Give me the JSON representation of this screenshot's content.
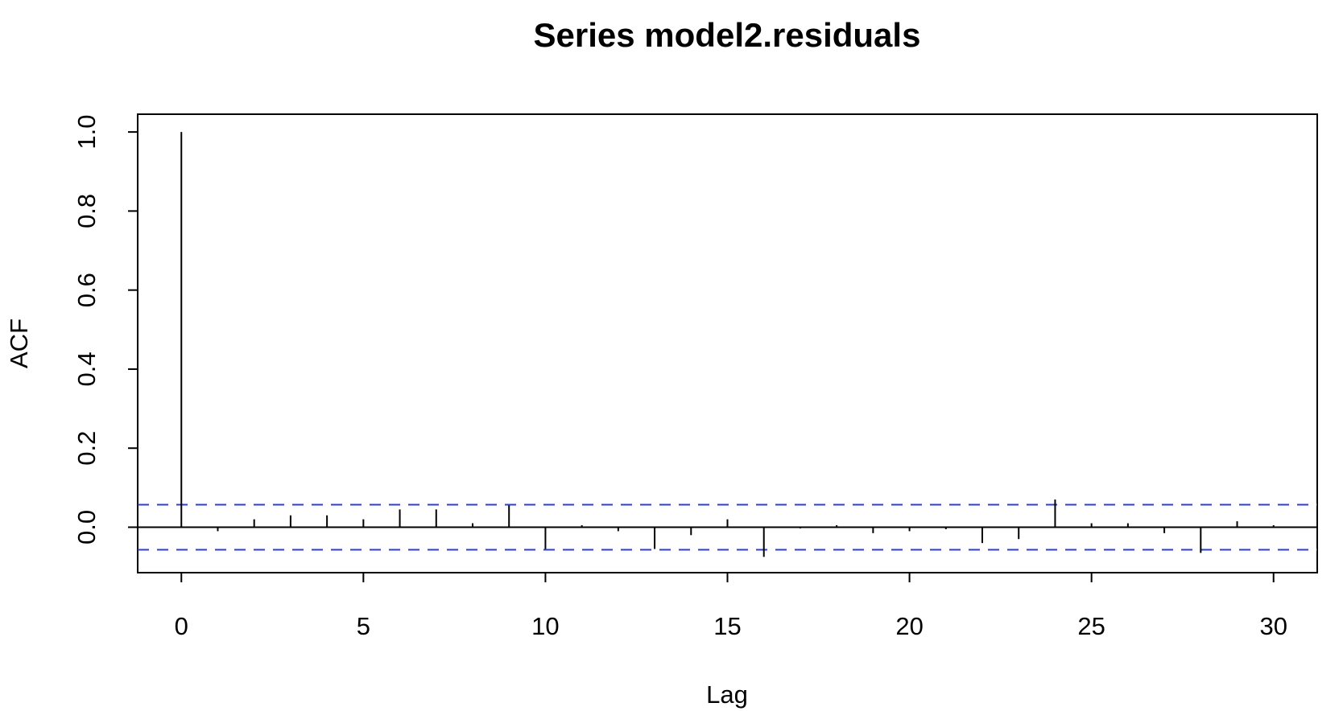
{
  "chart_data": {
    "type": "bar",
    "title": "Series  model2.residuals",
    "xlabel": "Lag",
    "ylabel": "ACF",
    "xlim": [
      -1.2,
      31.2
    ],
    "ylim": [
      -0.115,
      1.045
    ],
    "x_ticks": [
      0,
      5,
      10,
      15,
      20,
      25,
      30
    ],
    "y_ticks": [
      0.0,
      0.2,
      0.4,
      0.6,
      0.8,
      1.0
    ],
    "x_tick_labels": [
      "0",
      "5",
      "10",
      "15",
      "20",
      "25",
      "30"
    ],
    "y_tick_labels": [
      "0.0",
      "0.2",
      "0.4",
      "0.6",
      "0.8",
      "1.0"
    ],
    "lags": [
      0,
      1,
      2,
      3,
      4,
      5,
      6,
      7,
      8,
      9,
      10,
      11,
      12,
      13,
      14,
      15,
      16,
      17,
      18,
      19,
      20,
      21,
      22,
      23,
      24,
      25,
      26,
      27,
      28,
      29,
      30
    ],
    "values": [
      1.0,
      -0.01,
      0.02,
      0.03,
      0.03,
      0.02,
      0.045,
      0.045,
      0.01,
      0.055,
      -0.055,
      0.005,
      -0.01,
      -0.055,
      -0.02,
      0.02,
      -0.075,
      -0.003,
      0.005,
      -0.015,
      -0.01,
      -0.005,
      -0.04,
      -0.03,
      0.07,
      0.01,
      0.01,
      -0.015,
      -0.065,
      0.015,
      0.005
    ],
    "confidence_band": 0.057,
    "colors": {
      "bars": "#000000",
      "confidence_band": "#2b3fd6",
      "zero_line": "#000000"
    },
    "grid": false
  }
}
